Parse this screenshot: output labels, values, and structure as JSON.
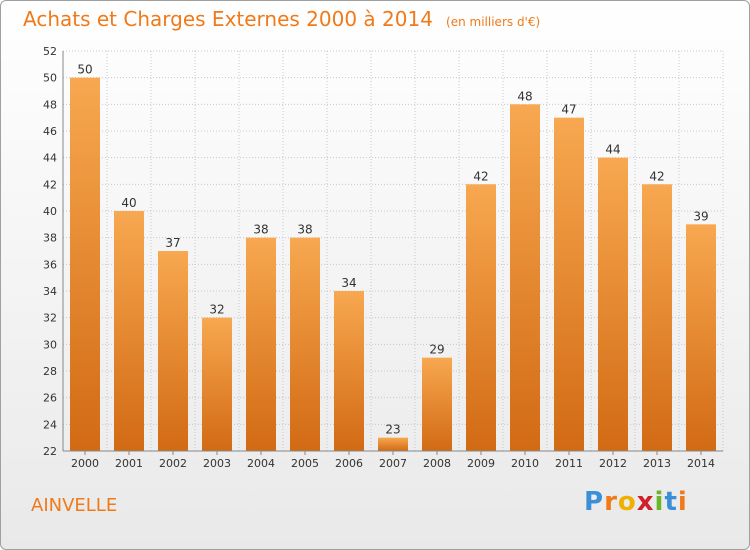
{
  "header": {
    "title": "Achats et Charges Externes 2000 à 2014",
    "unit": "(en milliers d'€)"
  },
  "footer": {
    "commune": "AINVELLE",
    "logo_text": "Proxiti"
  },
  "colors": {
    "accent": "#f07a1a",
    "bar_light": "#f7a850",
    "bar_dark": "#d26a14",
    "grid": "#c8c8c8"
  },
  "chart_data": {
    "type": "bar",
    "title": "Achats et Charges Externes 2000 à 2014",
    "xlabel": "",
    "ylabel": "",
    "categories": [
      "2000",
      "2001",
      "2002",
      "2003",
      "2004",
      "2005",
      "2006",
      "2007",
      "2008",
      "2009",
      "2010",
      "2011",
      "2012",
      "2013",
      "2014"
    ],
    "values": [
      50,
      40,
      37,
      32,
      38,
      38,
      34,
      23,
      29,
      42,
      48,
      47,
      44,
      42,
      39
    ],
    "ylim": [
      22,
      52
    ],
    "yticks": [
      22,
      24,
      26,
      28,
      30,
      32,
      34,
      36,
      38,
      40,
      42,
      44,
      46,
      48,
      50,
      52
    ],
    "grid": true,
    "legend": "none"
  }
}
